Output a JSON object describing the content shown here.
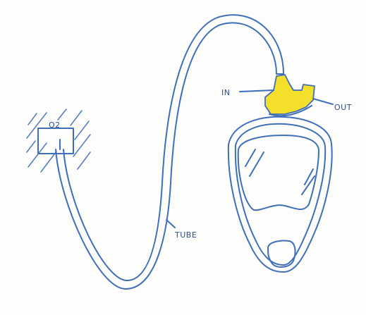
{
  "labels": {
    "source": "O2",
    "inlet": "IN",
    "outlet": "OUT",
    "tube": "TUBE"
  },
  "colors": {
    "ink": "#3f6fb8",
    "valve": "#f4df2a",
    "paper": "#fdfdfc"
  }
}
